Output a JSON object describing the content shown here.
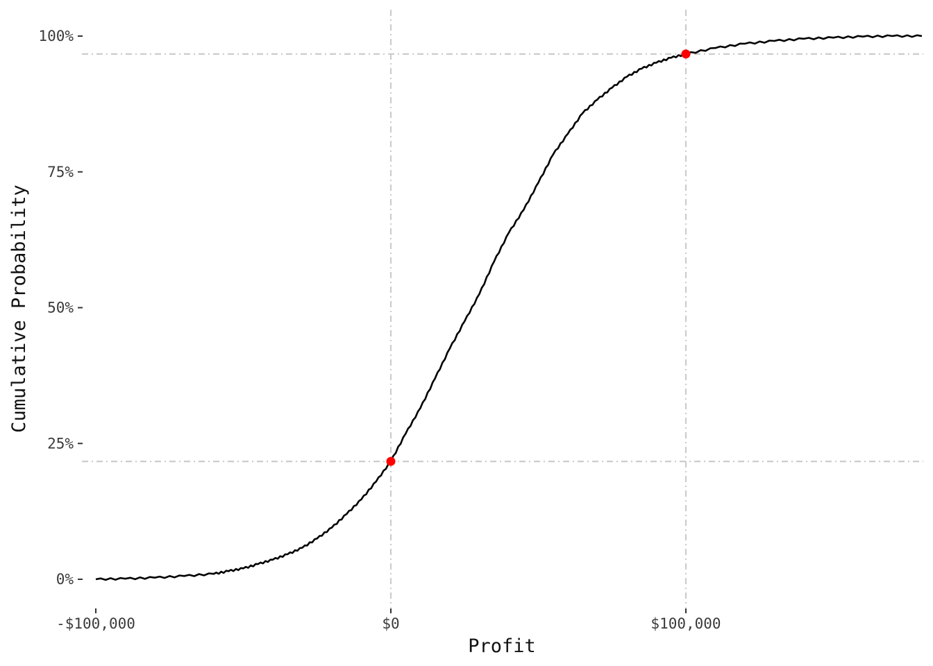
{
  "chart_data": {
    "type": "line",
    "title": "",
    "xlabel": "Profit",
    "ylabel": "Cumulative Probability",
    "xlim": [
      -105000,
      180000
    ],
    "ylim": [
      -0.05,
      1.05
    ],
    "grid": false,
    "x_ticks": [
      {
        "value": -100000,
        "label": "-$100,000"
      },
      {
        "value": 0,
        "label": "$0"
      },
      {
        "value": 100000,
        "label": "$100,000"
      }
    ],
    "y_ticks": [
      {
        "value": 0,
        "label": "0%"
      },
      {
        "value": 0.25,
        "label": "25%"
      },
      {
        "value": 0.5,
        "label": "50%"
      },
      {
        "value": 0.75,
        "label": "75%"
      },
      {
        "value": 1.0,
        "label": "100%"
      }
    ],
    "reference_lines": {
      "vertical": [
        0,
        100000
      ],
      "horizontal": [
        0.217,
        0.967
      ],
      "color": "#cccccc",
      "style": "dash-dot"
    },
    "series": [
      {
        "line_color": "#000000",
        "x": [
          -100000,
          -90000,
          -80000,
          -70000,
          -60000,
          -55000,
          -50000,
          -45000,
          -40000,
          -35000,
          -30000,
          -25000,
          -20000,
          -15000,
          -10000,
          -5000,
          0,
          5000,
          10000,
          15000,
          20000,
          25000,
          30000,
          35000,
          40000,
          45000,
          50000,
          55000,
          60000,
          65000,
          70000,
          75000,
          80000,
          85000,
          90000,
          95000,
          100000,
          110000,
          120000,
          130000,
          140000,
          150000,
          160000,
          170000,
          180000
        ],
        "y": [
          0.0,
          0.001,
          0.003,
          0.006,
          0.01,
          0.015,
          0.02,
          0.028,
          0.036,
          0.046,
          0.058,
          0.075,
          0.095,
          0.12,
          0.147,
          0.18,
          0.217,
          0.268,
          0.315,
          0.37,
          0.425,
          0.475,
          0.525,
          0.585,
          0.638,
          0.68,
          0.73,
          0.782,
          0.82,
          0.858,
          0.883,
          0.905,
          0.925,
          0.94,
          0.951,
          0.96,
          0.967,
          0.978,
          0.986,
          0.991,
          0.995,
          0.997,
          0.999,
          1.0,
          1.0
        ]
      }
    ],
    "highlight_points": [
      {
        "x": 0,
        "y": 0.217,
        "color": "#ff0000"
      },
      {
        "x": 100000,
        "y": 0.967,
        "color": "#ff0000"
      }
    ]
  }
}
